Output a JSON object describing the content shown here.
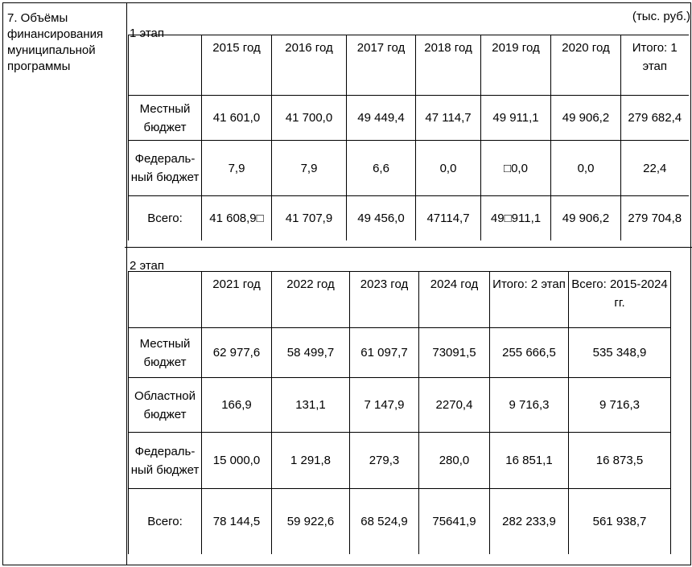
{
  "section_title": "7. Объёмы финансирования муниципальной программы",
  "unit": "(тыс. руб.)",
  "stage1": {
    "label": "1 этап",
    "headers": [
      "",
      "2015 год",
      "2016 год",
      "2017 год",
      "2018 год",
      "2019 год",
      "2020 год",
      "Итого: 1 этап"
    ],
    "rows": [
      [
        "Местный бюджет",
        "41 601,0",
        "41 700,0",
        "49 449,4",
        "47 114,7",
        "49 911,1",
        "49 906,2",
        "279 682,4"
      ],
      [
        "Федераль-ный бюджет",
        "7,9",
        "7,9",
        "6,6",
        "0,0",
        "□0,0",
        "0,0",
        "22,4"
      ],
      [
        "Всего:",
        "41 608,9□",
        "41 707,9",
        "49 456,0",
        "47114,7",
        "49□911,1",
        "49 906,2",
        "279 704,8"
      ]
    ]
  },
  "stage2": {
    "label": "2 этап",
    "headers": [
      "",
      "2021 год",
      "2022 год",
      "2023 год",
      "2024 год",
      "Итого: 2 этап",
      "Всего: 2015-2024 гг."
    ],
    "rows": [
      [
        "Местный бюджет",
        "62 977,6",
        "58 499,7",
        "61 097,7",
        "73091,5",
        "255 666,5",
        "535 348,9"
      ],
      [
        "Областной бюджет",
        "166,9",
        "131,1",
        "7 147,9",
        "2270,4",
        "9 716,3",
        "9 716,3"
      ],
      [
        "Федераль-ный бюджет",
        "15 000,0",
        "1 291,8",
        "279,3",
        "280,0",
        "16 851,1",
        "16 873,5"
      ],
      [
        "Всего:",
        "78 144,5",
        "59 922,6",
        "68 524,9",
        "75641,9",
        "282 233,9",
        "561 938,7"
      ]
    ]
  }
}
